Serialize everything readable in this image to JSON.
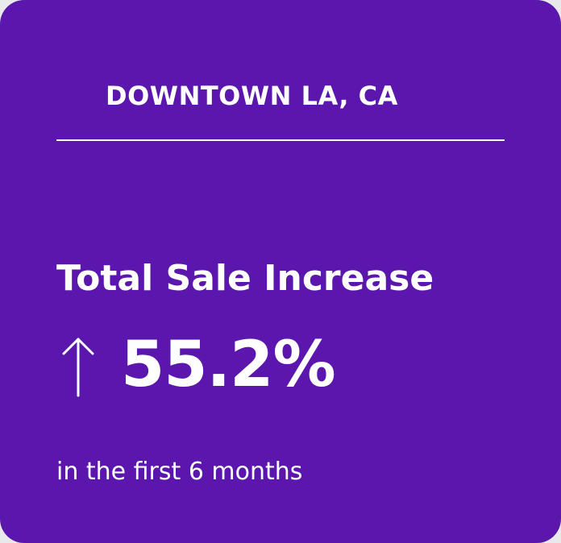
{
  "card": {
    "location": "DOWNTOWN LA, CA",
    "metric_title": "Total Sale Increase",
    "trend_icon": "arrow-up-icon",
    "metric_value": "55.2%",
    "caption": "in the first 6 months"
  },
  "colors": {
    "card_background": "#5b17ad",
    "text": "#ffffff"
  }
}
